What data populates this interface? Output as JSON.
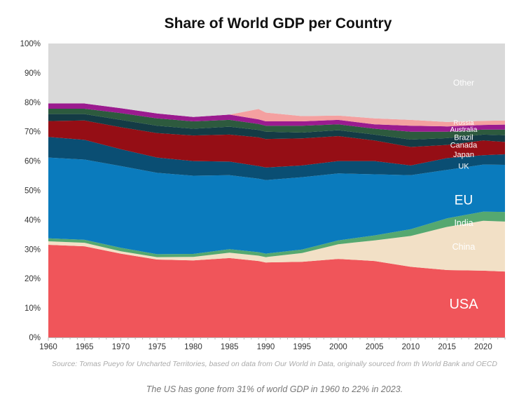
{
  "chart_data": {
    "type": "area",
    "stacked": true,
    "title": "Share of World GDP per Country",
    "xlabel": "",
    "ylabel": "",
    "xlim": [
      1960,
      2023
    ],
    "ylim": [
      0,
      100
    ],
    "y_unit": "%",
    "grid": false,
    "x_ticks": [
      1960,
      1965,
      1970,
      1975,
      1980,
      1985,
      1990,
      1995,
      2000,
      2005,
      2010,
      2015,
      2020
    ],
    "y_ticks": [
      "0%",
      "10%",
      "20%",
      "30%",
      "40%",
      "50%",
      "60%",
      "70%",
      "80%",
      "90%",
      "100%"
    ],
    "x": [
      1960,
      1965,
      1970,
      1975,
      1980,
      1985,
      1989,
      1990,
      1995,
      2000,
      2005,
      2010,
      2015,
      2020,
      2023
    ],
    "series": [
      {
        "name": "USA",
        "color": "#F0555A",
        "values": [
          31.5,
          31.0,
          28.5,
          26.5,
          26.2,
          27.0,
          26.0,
          25.5,
          25.7,
          26.7,
          26.0,
          24.0,
          22.9,
          22.7,
          22.4
        ]
      },
      {
        "name": "China",
        "color": "#F2E0C6",
        "values": [
          1.2,
          1.2,
          0.8,
          0.8,
          1.2,
          1.8,
          1.8,
          1.8,
          3.0,
          5.0,
          7.0,
          10.5,
          14.7,
          17.0,
          17.0
        ]
      },
      {
        "name": "India",
        "color": "#55A870",
        "values": [
          1.0,
          1.0,
          1.2,
          1.0,
          1.0,
          1.2,
          1.2,
          1.2,
          1.2,
          1.3,
          1.7,
          2.3,
          2.9,
          3.1,
          3.3
        ]
      },
      {
        "name": "EU",
        "color": "#0A7BBD",
        "values": [
          27.5,
          27.3,
          27.8,
          27.7,
          26.6,
          25.2,
          25.0,
          25.0,
          24.6,
          22.8,
          20.8,
          18.4,
          16.5,
          16.0,
          16.0
        ]
      },
      {
        "name": "UK",
        "color": "#0A4E73",
        "values": [
          7.0,
          6.7,
          5.7,
          5.2,
          5.0,
          4.6,
          4.3,
          4.3,
          4.0,
          4.2,
          4.5,
          3.3,
          4.0,
          3.2,
          3.6
        ]
      },
      {
        "name": "Japan",
        "color": "#950E15",
        "values": [
          5.4,
          6.6,
          7.5,
          8.3,
          8.7,
          9.2,
          9.8,
          9.7,
          9.2,
          8.5,
          7.0,
          6.3,
          4.5,
          5.0,
          4.2
        ]
      },
      {
        "name": "Canada",
        "color": "#143B45",
        "values": [
          2.4,
          2.2,
          2.5,
          2.5,
          2.3,
          2.7,
          2.5,
          2.5,
          2.0,
          2.0,
          2.0,
          2.5,
          2.3,
          2.0,
          2.3
        ]
      },
      {
        "name": "Brazil",
        "color": "#2D5A3E",
        "values": [
          1.8,
          1.8,
          2.3,
          2.5,
          2.5,
          2.3,
          2.0,
          2.0,
          2.3,
          2.0,
          2.0,
          2.7,
          2.2,
          1.7,
          1.9
        ]
      },
      {
        "name": "Australia",
        "color": "#9B1B8F",
        "values": [
          1.8,
          1.8,
          1.7,
          1.7,
          1.5,
          1.8,
          1.6,
          1.5,
          1.5,
          1.5,
          1.5,
          2.0,
          1.8,
          1.6,
          1.7
        ]
      },
      {
        "name": "Russia",
        "color": "#F4A0A0",
        "values": [
          0,
          0,
          0,
          0,
          0,
          0,
          3.5,
          3.0,
          1.8,
          1.5,
          2.0,
          2.0,
          1.5,
          1.4,
          1.4
        ]
      },
      {
        "name": "Other",
        "color": "#D9D9D9",
        "values": [
          20.4,
          20.4,
          22.0,
          23.8,
          25.0,
          24.2,
          22.3,
          23.5,
          24.7,
          24.5,
          25.5,
          26.0,
          26.7,
          26.3,
          26.2
        ]
      }
    ],
    "source": "Source: Tomas Pueyo for Uncharted Territories, based on data from Our World in Data, originally sourced from th World Bank and OECD"
  },
  "caption": "The US has gone from 31% of world GDP in 1960 to 22% in 2023."
}
